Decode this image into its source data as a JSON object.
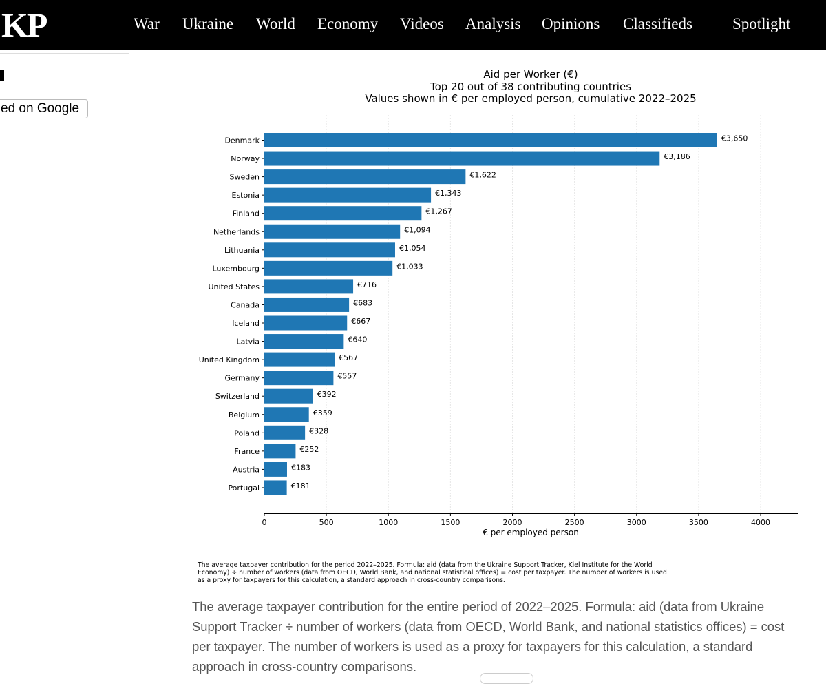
{
  "header": {
    "logo": "KP",
    "nav": [
      "War",
      "Ukraine",
      "World",
      "Economy",
      "Videos",
      "Analysis",
      "Opinions",
      "Classifieds"
    ],
    "spotlight": "Spotlight"
  },
  "sidebar": {
    "google_button_label": "ed on Google"
  },
  "chart_data": {
    "type": "bar",
    "orientation": "horizontal",
    "title": [
      "Aid per Worker (€)",
      "Top 20 out of 38 contributing countries",
      "Values shown in € per employed person, cumulative 2022–2025"
    ],
    "categories": [
      "Denmark",
      "Norway",
      "Sweden",
      "Estonia",
      "Finland",
      "Netherlands",
      "Lithuania",
      "Luxembourg",
      "United States",
      "Canada",
      "Iceland",
      "Latvia",
      "United Kingdom",
      "Germany",
      "Switzerland",
      "Belgium",
      "Poland",
      "France",
      "Austria",
      "Portugal"
    ],
    "values": [
      3650,
      3186,
      1622,
      1343,
      1267,
      1094,
      1054,
      1033,
      716,
      683,
      667,
      640,
      567,
      557,
      392,
      359,
      328,
      252,
      183,
      181
    ],
    "value_labels": [
      "€3,650",
      "€3,186",
      "€1,622",
      "€1,343",
      "€1,267",
      "€1,094",
      "€1,054",
      "€1,033",
      "€716",
      "€683",
      "€667",
      "€640",
      "€567",
      "€557",
      "€392",
      "€359",
      "€328",
      "€252",
      "€183",
      "€181"
    ],
    "xlabel": "€ per employed person",
    "ylabel": "",
    "xlim": [
      0,
      4300
    ],
    "xticks": [
      0,
      500,
      1000,
      1500,
      2000,
      2500,
      3000,
      3500,
      4000
    ],
    "grid": "vertical dotted",
    "bar_color": "#1f77b4"
  },
  "figure_note": "The average taxpayer contribution for the period 2022–2025. Formula: aid (data from the Ukraine Support Tracker, Kiel Institute for the World Economy) ÷ number of workers (data from OECD, World Bank, and national statistical offices) = cost per taxpayer. The number of workers is used as a proxy for taxpayers for this calculation, a standard approach in cross-country comparisons.",
  "caption": "The average taxpayer contribution for the entire period of 2022–2025. Formula: aid (data from Ukraine Support Tracker ÷ number of workers (data from OECD, World Bank, and national statistics offices) = cost per taxpayer. The number of workers is used as a proxy for taxpayers for this calculation, a standard approach in cross-country comparisons."
}
